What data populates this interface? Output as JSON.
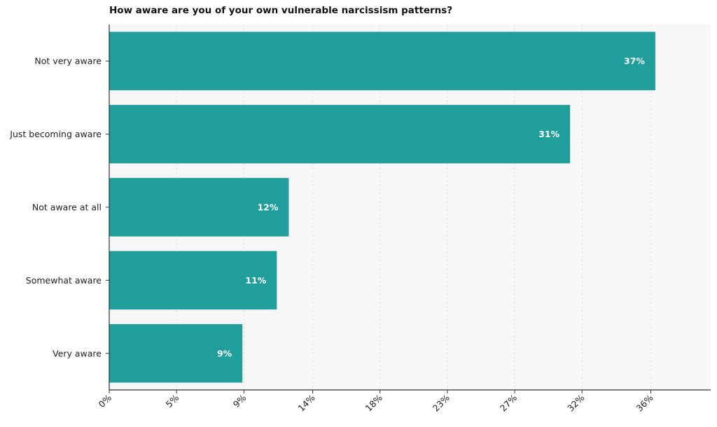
{
  "chart_data": {
    "type": "bar",
    "orientation": "horizontal",
    "title": "How aware are you of your own vulnerable narcissism patterns?",
    "xlabel": "",
    "ylabel": "",
    "categories": [
      "Not very aware",
      "Just becoming aware",
      "Not aware at all",
      "Somewhat aware",
      "Very aware"
    ],
    "values": [
      36.5,
      30.8,
      12.0,
      11.2,
      8.9
    ],
    "data_labels": [
      "37%",
      "31%",
      "12%",
      "11%",
      "9%"
    ],
    "xlim": [
      0,
      40.2
    ],
    "x_ticks": [
      0,
      4.5,
      9,
      13.6,
      18.1,
      22.6,
      27.1,
      31.6,
      36.2
    ],
    "x_tick_labels": [
      "0%",
      "5%",
      "9%",
      "14%",
      "18%",
      "23%",
      "27%",
      "32%",
      "36%"
    ],
    "grid": "vertical dashed",
    "legend": "none",
    "colors": {
      "bar": "#1f9e9b",
      "plot_bg": "#f7f7f7",
      "grid": "#dddddd",
      "axis": "#333333",
      "bar_label": "#ffffff"
    }
  }
}
